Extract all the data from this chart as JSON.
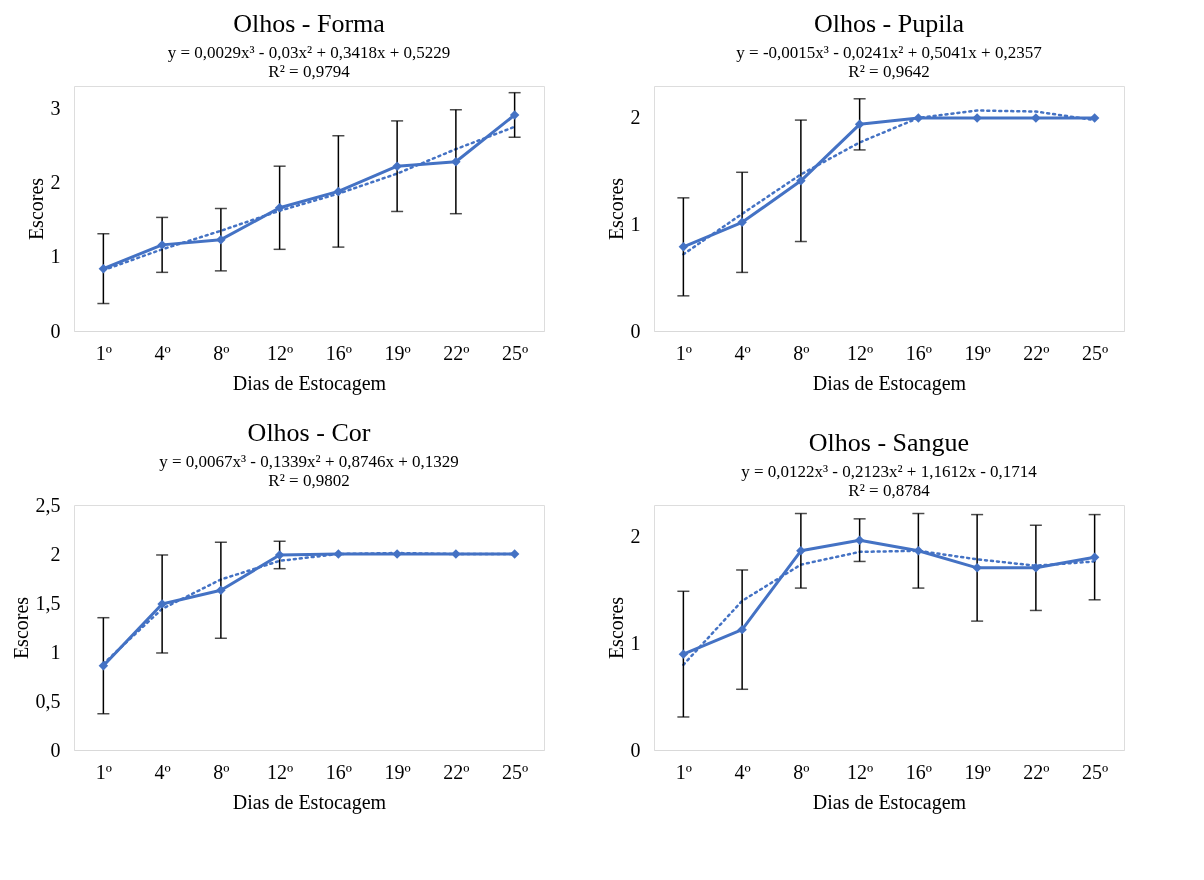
{
  "chart_data": [
    {
      "type": "line",
      "title": "Olhos - Forma",
      "annotations": [
        "y = 0,0029x³ - 0,03x² + 0,3418x + 0,5229",
        "R² = 0,9794"
      ],
      "xlabel": "Dias de Estocagem",
      "ylabel": "Escores",
      "categories": [
        "1º",
        "4º",
        "8º",
        "12º",
        "16º",
        "19º",
        "22º",
        "25º"
      ],
      "ylim": [
        0,
        3.3
      ],
      "yticks": [
        0,
        1,
        2,
        3
      ],
      "series": [
        {
          "type": "line",
          "color": "#4472c4",
          "marker": "diamond",
          "values": [
            0.84,
            1.16,
            1.23,
            1.66,
            1.88,
            2.22,
            2.28,
            2.91
          ],
          "errors": [
            0.47,
            0.37,
            0.42,
            0.56,
            0.75,
            0.61,
            0.7,
            0.3
          ]
        },
        {
          "type": "line",
          "color": "#4472c4",
          "marker": "none",
          "line_style": "dotted",
          "values": [
            0.82,
            1.1,
            1.35,
            1.62,
            1.85,
            2.12,
            2.45,
            2.75
          ]
        }
      ]
    },
    {
      "type": "line",
      "title": "Olhos - Pupila",
      "annotations": [
        "y = -0,0015x³ - 0,0241x² + 0,5041x + 0,2357",
        "R² = 0,9642"
      ],
      "xlabel": "Dias de Estocagem",
      "ylabel": "Escores",
      "categories": [
        "1º",
        "4º",
        "8º",
        "12º",
        "16º",
        "19º",
        "22º",
        "25º"
      ],
      "ylim": [
        0,
        2.3
      ],
      "yticks": [
        0,
        1,
        2
      ],
      "series": [
        {
          "type": "line",
          "color": "#4472c4",
          "marker": "diamond",
          "values": [
            0.79,
            1.02,
            1.41,
            1.94,
            2.0,
            2.0,
            2.0,
            2.0
          ],
          "errors": [
            0.46,
            0.47,
            0.57,
            0.24,
            null,
            null,
            null,
            null
          ]
        },
        {
          "type": "line",
          "color": "#4472c4",
          "marker": "none",
          "line_style": "dotted",
          "values": [
            0.72,
            1.1,
            1.47,
            1.77,
            2.0,
            2.07,
            2.06,
            1.98
          ]
        }
      ]
    },
    {
      "type": "line",
      "title": "Olhos - Cor",
      "annotations": [
        "y = 0,0067x³ - 0,1339x² + 0,8746x + 0,1329",
        "R² = 0,9802"
      ],
      "xlabel": "Dias de Estocagem",
      "ylabel": "Escores",
      "categories": [
        "1º",
        "4º",
        "8º",
        "12º",
        "16º",
        "19º",
        "22º",
        "25º"
      ],
      "ylim": [
        0,
        2.5
      ],
      "yticks": [
        0,
        {
          "value": 0.5,
          "label": "0,5"
        },
        1,
        {
          "value": 1.5,
          "label": "1,5"
        },
        2,
        {
          "value": 2.5,
          "label": "2,5"
        }
      ],
      "series": [
        {
          "type": "line",
          "color": "#4472c4",
          "marker": "diamond",
          "values": [
            0.86,
            1.49,
            1.63,
            1.99,
            2.0,
            2.0,
            2.0,
            2.0
          ],
          "errors": [
            0.49,
            0.5,
            0.49,
            0.14,
            null,
            null,
            null,
            null
          ]
        },
        {
          "type": "line",
          "color": "#4472c4",
          "marker": "none",
          "line_style": "dotted",
          "values": [
            0.88,
            1.44,
            1.74,
            1.93,
            2.0,
            2.01,
            2.0,
            2.0
          ]
        }
      ]
    },
    {
      "type": "line",
      "title": "Olhos - Sangue",
      "annotations": [
        "y = 0,0122x³ - 0,2123x² + 1,1612x - 0,1714",
        "R² = 0,8784"
      ],
      "xlabel": "Dias de Estocagem",
      "ylabel": "Escores",
      "categories": [
        "1º",
        "4º",
        "8º",
        "12º",
        "16º",
        "19º",
        "22º",
        "25º"
      ],
      "ylim": [
        0,
        2.3
      ],
      "yticks": [
        0,
        1,
        2
      ],
      "series": [
        {
          "type": "line",
          "color": "#4472c4",
          "marker": "diamond",
          "values": [
            0.9,
            1.13,
            1.87,
            1.97,
            1.87,
            1.71,
            1.71,
            1.81
          ],
          "errors": [
            0.59,
            0.56,
            0.35,
            0.2,
            0.35,
            0.5,
            0.4,
            0.4
          ]
        },
        {
          "type": "line",
          "color": "#4472c4",
          "marker": "none",
          "line_style": "dotted",
          "values": [
            0.8,
            1.4,
            1.74,
            1.86,
            1.87,
            1.79,
            1.73,
            1.77
          ]
        }
      ]
    }
  ]
}
